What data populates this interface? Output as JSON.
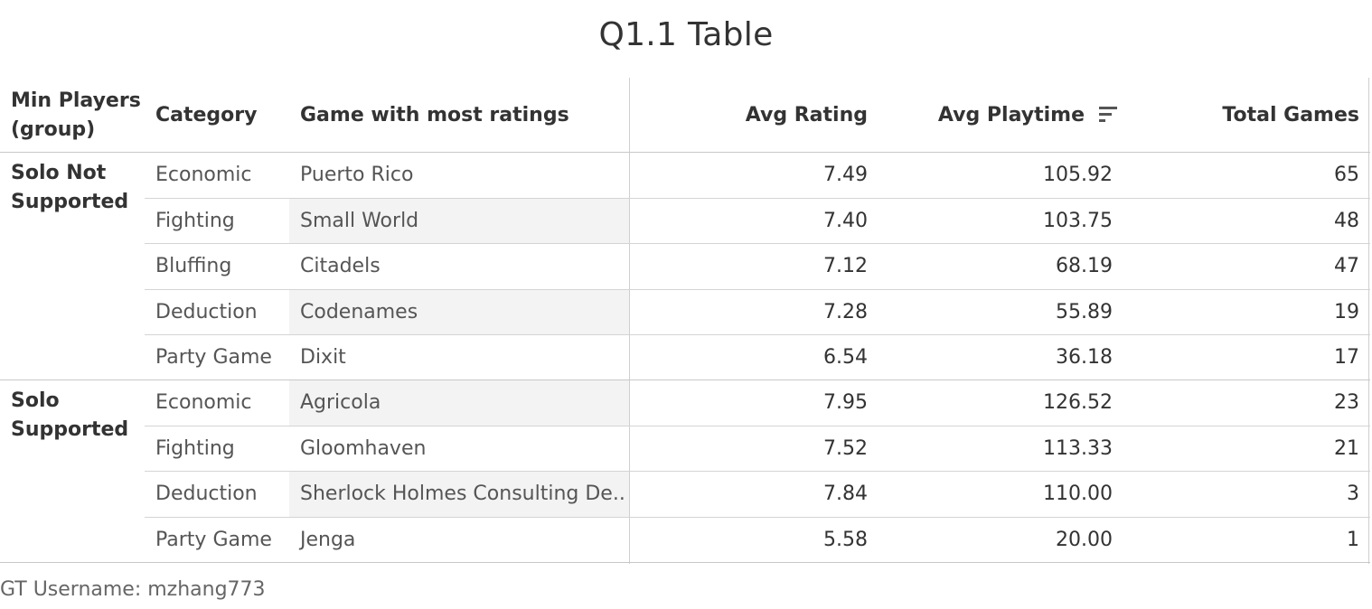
{
  "title": "Q1.1 Table",
  "headers": {
    "group_line1": "Min Players",
    "group_line2": "(group)",
    "category": "Category",
    "game": "Game with most ratings",
    "avg_rating": "Avg Rating",
    "avg_playtime": "Avg Playtime",
    "total_games": "Total Games"
  },
  "groups": [
    {
      "line1": "Solo Not",
      "line2": "Supported"
    },
    {
      "line1": "Solo",
      "line2": "Supported"
    }
  ],
  "rows": [
    {
      "category": "Economic",
      "game": "Puerto Rico",
      "avg_rating": "7.49",
      "avg_playtime": "105.92",
      "total_games": "65"
    },
    {
      "category": "Fighting",
      "game": "Small World",
      "avg_rating": "7.40",
      "avg_playtime": "103.75",
      "total_games": "48"
    },
    {
      "category": "Bluffing",
      "game": "Citadels",
      "avg_rating": "7.12",
      "avg_playtime": "68.19",
      "total_games": "47"
    },
    {
      "category": "Deduction",
      "game": "Codenames",
      "avg_rating": "7.28",
      "avg_playtime": "55.89",
      "total_games": "19"
    },
    {
      "category": "Party Game",
      "game": "Dixit",
      "avg_rating": "6.54",
      "avg_playtime": "36.18",
      "total_games": "17"
    },
    {
      "category": "Economic",
      "game": "Agricola",
      "avg_rating": "7.95",
      "avg_playtime": "126.52",
      "total_games": "23"
    },
    {
      "category": "Fighting",
      "game": "Gloomhaven",
      "avg_rating": "7.52",
      "avg_playtime": "113.33",
      "total_games": "21"
    },
    {
      "category": "Deduction",
      "game": "Sherlock Holmes Consulting De..",
      "avg_rating": "7.84",
      "avg_playtime": "110.00",
      "total_games": "3"
    },
    {
      "category": "Party Game",
      "game": "Jenga",
      "avg_rating": "5.58",
      "avg_playtime": "20.00",
      "total_games": "1"
    }
  ],
  "footer": "GT Username: mzhang773",
  "colors": {
    "text": "#333333",
    "muted": "#555555",
    "shade": "#f3f3f3",
    "divider": "#d4d4d4"
  },
  "icons": {
    "sort": "sort-descending-icon"
  },
  "chart_data": {
    "type": "table",
    "title": "Q1.1 Table",
    "columns": [
      "Min Players (group)",
      "Category",
      "Game with most ratings",
      "Avg Rating",
      "Avg Playtime",
      "Total Games"
    ],
    "sorted_by": "Avg Playtime",
    "rows": [
      [
        "Solo Not Supported",
        "Economic",
        "Puerto Rico",
        7.49,
        105.92,
        65
      ],
      [
        "Solo Not Supported",
        "Fighting",
        "Small World",
        7.4,
        103.75,
        48
      ],
      [
        "Solo Not Supported",
        "Bluffing",
        "Citadels",
        7.12,
        68.19,
        47
      ],
      [
        "Solo Not Supported",
        "Deduction",
        "Codenames",
        7.28,
        55.89,
        19
      ],
      [
        "Solo Not Supported",
        "Party Game",
        "Dixit",
        6.54,
        36.18,
        17
      ],
      [
        "Solo Supported",
        "Economic",
        "Agricola",
        7.95,
        126.52,
        23
      ],
      [
        "Solo Supported",
        "Fighting",
        "Gloomhaven",
        7.52,
        113.33,
        21
      ],
      [
        "Solo Supported",
        "Deduction",
        "Sherlock Holmes Consulting De..",
        7.84,
        110.0,
        3
      ],
      [
        "Solo Supported",
        "Party Game",
        "Jenga",
        5.58,
        20.0,
        1
      ]
    ]
  }
}
